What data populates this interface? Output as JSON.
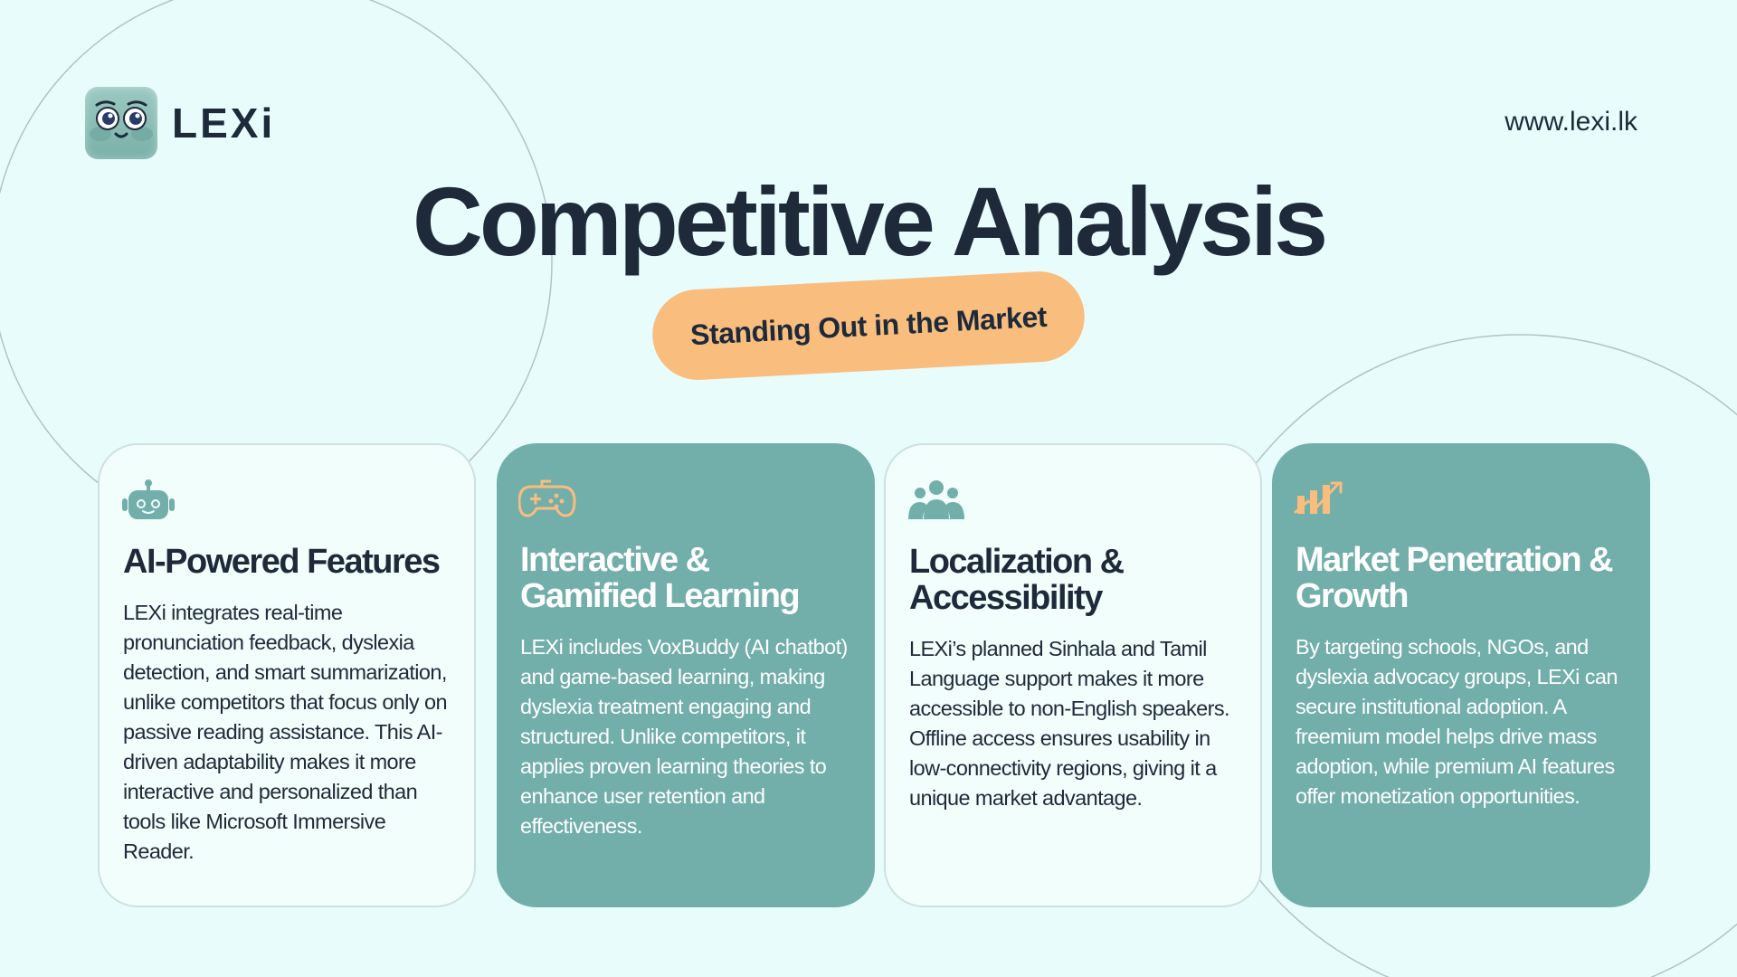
{
  "brand": {
    "name": "LEXi",
    "url": "www.lexi.lk"
  },
  "title": "Competitive Analysis",
  "subtitle": "Standing Out in the Market",
  "colors": {
    "background": "#e8fdfb",
    "teal": "#72aeaa",
    "accent": "#f9bd7e",
    "text": "#1e2a3a"
  },
  "cards": [
    {
      "icon": "robot-icon",
      "heading": "AI-Powered Features",
      "body": "LEXi integrates real-time pronunciation feedback, dyslexia detection, and smart summarization, unlike competitors that focus only on passive reading assistance. This AI-driven adaptability makes it more interactive and personalized than tools like Microsoft Immersive Reader."
    },
    {
      "icon": "gamepad-icon",
      "heading": "Interactive & Gamified Learning",
      "body": "LEXi includes VoxBuddy (AI chatbot) and game-based learning, making dyslexia treatment engaging and structured. Unlike competitors, it applies proven learning theories to enhance user retention and effectiveness."
    },
    {
      "icon": "users-icon",
      "heading": " Localization & Accessibility",
      "body": "LEXi’s planned Sinhala and Tamil Language support makes it more accessible to non-English speakers. Offline access ensures usability in low-connectivity regions, giving it a unique market advantage."
    },
    {
      "icon": "growth-chart-icon",
      "heading": "Market Penetration & Growth",
      "body": "By targeting schools, NGOs, and dyslexia advocacy groups, LEXi can secure institutional adoption. A freemium model helps drive mass adoption, while premium AI features offer monetization opportunities."
    }
  ]
}
